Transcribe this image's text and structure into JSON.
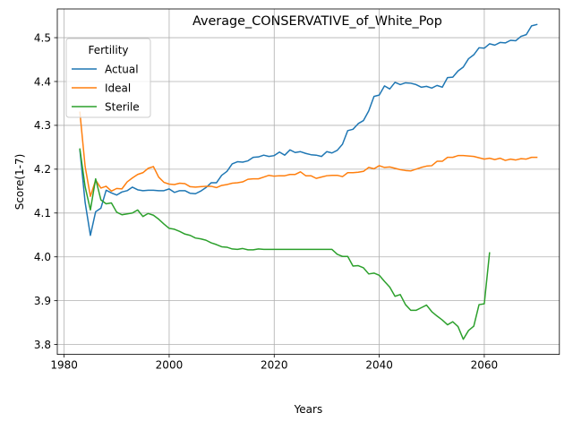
{
  "chart_data": {
    "type": "line",
    "title": "Average_CONSERVATIVE_of_White_Pop",
    "xlabel": "Years",
    "ylabel": "Score(1-7)",
    "xlim": [
      1978.7,
      2074.3
    ],
    "ylim": [
      3.7775,
      4.5655
    ],
    "xticks": [
      1980,
      2000,
      2020,
      2040,
      2060
    ],
    "yticks": [
      3.8,
      3.9,
      4.0,
      4.1,
      4.2,
      4.3,
      4.4,
      4.5
    ],
    "xtick_labels": [
      "1980",
      "2000",
      "2020",
      "2040",
      "2060"
    ],
    "ytick_labels": [
      "3.8",
      "3.9",
      "4.0",
      "4.1",
      "4.2",
      "4.3",
      "4.4",
      "4.5"
    ],
    "grid": true,
    "legend": {
      "title": "Fertility",
      "placement": "top-left"
    },
    "series": [
      {
        "name": "Actual",
        "color": "#1f77b4",
        "x": [
          1983,
          1984,
          1985,
          1986,
          1987,
          1988,
          1989,
          1990,
          1991,
          1992,
          1993,
          1994,
          1995,
          1996,
          1997,
          1998,
          1999,
          2000,
          2001,
          2002,
          2003,
          2004,
          2005,
          2006,
          2007,
          2008,
          2009,
          2010,
          2011,
          2012,
          2013,
          2014,
          2015,
          2016,
          2017,
          2018,
          2019,
          2020,
          2021,
          2022,
          2023,
          2024,
          2025,
          2026,
          2027,
          2028,
          2029,
          2030,
          2031,
          2032,
          2033,
          2034,
          2035,
          2036,
          2037,
          2038,
          2039,
          2040,
          2041,
          2042,
          2043,
          2044,
          2045,
          2046,
          2047,
          2048,
          2049,
          2050,
          2051,
          2052,
          2053,
          2054,
          2055,
          2056,
          2057,
          2058,
          2059,
          2060,
          2061,
          2062,
          2063,
          2064,
          2065,
          2066,
          2067,
          2068,
          2069,
          2070
        ],
        "values": [
          4.244,
          4.124,
          4.049,
          4.103,
          4.111,
          4.152,
          4.146,
          4.141,
          4.148,
          4.151,
          4.159,
          4.153,
          4.151,
          4.152,
          4.152,
          4.151,
          4.151,
          4.155,
          4.147,
          4.151,
          4.151,
          4.145,
          4.144,
          4.15,
          4.158,
          4.169,
          4.169,
          4.186,
          4.195,
          4.212,
          4.217,
          4.216,
          4.219,
          4.227,
          4.228,
          4.232,
          4.229,
          4.231,
          4.239,
          4.232,
          4.244,
          4.238,
          4.24,
          4.236,
          4.233,
          4.232,
          4.229,
          4.24,
          4.237,
          4.243,
          4.257,
          4.288,
          4.291,
          4.304,
          4.311,
          4.333,
          4.366,
          4.369,
          4.39,
          4.383,
          4.398,
          4.393,
          4.397,
          4.396,
          4.393,
          4.387,
          4.389,
          4.385,
          4.391,
          4.387,
          4.409,
          4.41,
          4.424,
          4.433,
          4.452,
          4.461,
          4.477,
          4.476,
          4.486,
          4.483,
          4.489,
          4.488,
          4.494,
          4.493,
          4.503,
          4.507,
          4.527,
          4.53
        ]
      },
      {
        "name": "Ideal",
        "color": "#ff7f0e",
        "x": [
          1983,
          1984,
          1985,
          1986,
          1987,
          1988,
          1989,
          1990,
          1991,
          1992,
          1993,
          1994,
          1995,
          1996,
          1997,
          1998,
          1999,
          2000,
          2001,
          2002,
          2003,
          2004,
          2005,
          2006,
          2007,
          2008,
          2009,
          2010,
          2011,
          2012,
          2013,
          2014,
          2015,
          2016,
          2017,
          2018,
          2019,
          2020,
          2021,
          2022,
          2023,
          2024,
          2025,
          2026,
          2027,
          2028,
          2029,
          2030,
          2031,
          2032,
          2033,
          2034,
          2035,
          2036,
          2037,
          2038,
          2039,
          2040,
          2041,
          2042,
          2043,
          2044,
          2045,
          2046,
          2047,
          2048,
          2049,
          2050,
          2051,
          2052,
          2053,
          2054,
          2055,
          2056,
          2057,
          2058,
          2059,
          2060,
          2061,
          2062,
          2063,
          2064,
          2065,
          2066,
          2067,
          2068,
          2069,
          2070
        ],
        "values": [
          4.33,
          4.206,
          4.138,
          4.175,
          4.157,
          4.161,
          4.15,
          4.156,
          4.155,
          4.171,
          4.18,
          4.188,
          4.192,
          4.202,
          4.206,
          4.182,
          4.17,
          4.166,
          4.165,
          4.168,
          4.167,
          4.16,
          4.159,
          4.16,
          4.161,
          4.161,
          4.158,
          4.163,
          4.165,
          4.168,
          4.169,
          4.171,
          4.177,
          4.178,
          4.178,
          4.182,
          4.186,
          4.184,
          4.185,
          4.185,
          4.188,
          4.188,
          4.194,
          4.185,
          4.185,
          4.179,
          4.182,
          4.185,
          4.186,
          4.186,
          4.183,
          4.192,
          4.192,
          4.193,
          4.195,
          4.204,
          4.201,
          4.208,
          4.204,
          4.205,
          4.202,
          4.199,
          4.197,
          4.196,
          4.2,
          4.204,
          4.207,
          4.208,
          4.218,
          4.218,
          4.227,
          4.227,
          4.231,
          4.231,
          4.23,
          4.229,
          4.226,
          4.223,
          4.225,
          4.222,
          4.225,
          4.22,
          4.223,
          4.221,
          4.224,
          4.223,
          4.227,
          4.227
        ]
      },
      {
        "name": "Sterile",
        "color": "#2ca02c",
        "x": [
          1983,
          1984,
          1985,
          1986,
          1987,
          1988,
          1989,
          1990,
          1991,
          1992,
          1993,
          1994,
          1995,
          1996,
          1997,
          1998,
          1999,
          2000,
          2001,
          2002,
          2003,
          2004,
          2005,
          2006,
          2007,
          2008,
          2009,
          2010,
          2011,
          2012,
          2013,
          2014,
          2015,
          2016,
          2017,
          2018,
          2019,
          2020,
          2021,
          2022,
          2023,
          2024,
          2025,
          2026,
          2027,
          2028,
          2029,
          2030,
          2031,
          2032,
          2033,
          2034,
          2035,
          2036,
          2037,
          2038,
          2039,
          2040,
          2041,
          2042,
          2043,
          2044,
          2045,
          2046,
          2047,
          2048,
          2049,
          2050,
          2051,
          2052,
          2053,
          2054,
          2055,
          2056,
          2057,
          2058,
          2059,
          2060,
          2061
        ],
        "values": [
          4.246,
          4.16,
          4.107,
          4.178,
          4.13,
          4.121,
          4.123,
          4.102,
          4.096,
          4.098,
          4.1,
          4.107,
          4.092,
          4.099,
          4.095,
          4.086,
          4.075,
          4.065,
          4.063,
          4.058,
          4.052,
          4.049,
          4.043,
          4.041,
          4.038,
          4.032,
          4.028,
          4.023,
          4.022,
          4.018,
          4.017,
          4.019,
          4.016,
          4.016,
          4.018,
          4.017,
          4.017,
          4.017,
          4.017,
          4.017,
          4.017,
          4.017,
          4.017,
          4.017,
          4.017,
          4.017,
          4.017,
          4.017,
          4.017,
          4.006,
          4.001,
          4.001,
          3.979,
          3.98,
          3.975,
          3.961,
          3.963,
          3.958,
          3.944,
          3.931,
          3.91,
          3.914,
          3.891,
          3.878,
          3.878,
          3.884,
          3.89,
          3.875,
          3.865,
          3.856,
          3.845,
          3.852,
          3.841,
          3.812,
          3.832,
          3.842,
          3.891,
          3.893,
          4.009
        ]
      }
    ]
  }
}
